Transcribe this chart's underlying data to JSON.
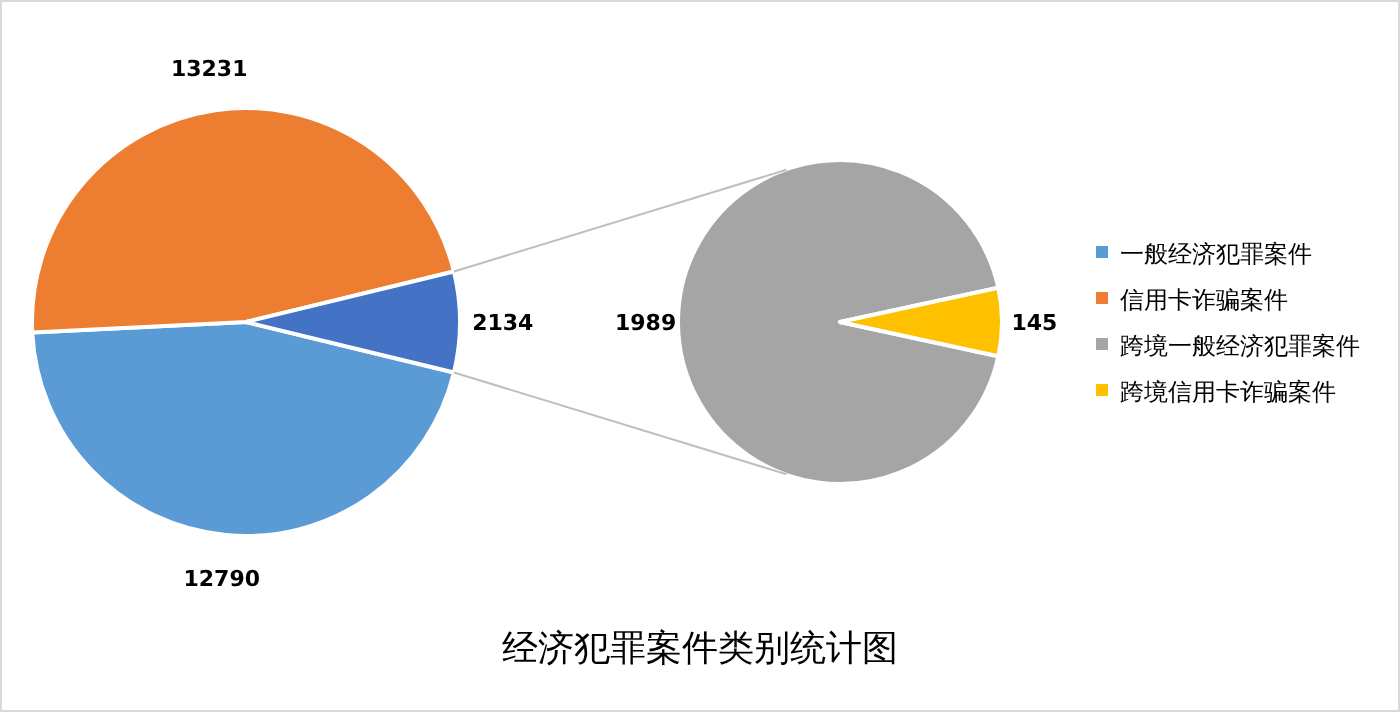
{
  "chart_data": [
    {
      "type": "pie",
      "title": "经济犯罪案件类别统计图",
      "categories": [
        "一般经济犯罪案件",
        "信用卡诈骗案件",
        null
      ],
      "values": [
        12790,
        13231,
        2134
      ],
      "colors": [
        "#5b9bd5",
        "#ed7d31",
        "#4472c4"
      ],
      "data_labels": true,
      "legend": "right"
    },
    {
      "type": "pie",
      "categories": [
        "跨境一般经济犯罪案件",
        "跨境信用卡诈骗案件"
      ],
      "values": [
        1989,
        145
      ],
      "colors": [
        "#a5a5a5",
        "#ffc000"
      ],
      "data_labels": true,
      "legend": "right"
    }
  ]
}
